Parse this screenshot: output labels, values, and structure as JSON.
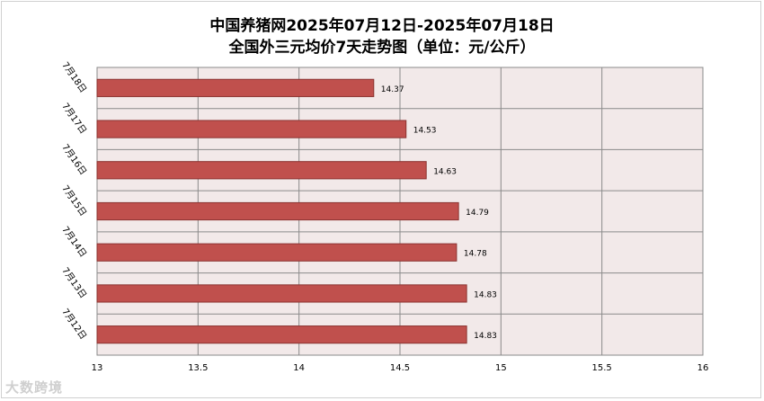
{
  "chart_data": {
    "type": "bar",
    "orientation": "horizontal",
    "title": "中国养猪网2025年07月12日-2025年07月18日",
    "subtitle": "全国外三元均价7天走势图（单位：元/公斤）",
    "categories": [
      "7月18日",
      "7月17日",
      "7月16日",
      "7月15日",
      "7月14日",
      "7月13日",
      "7月12日"
    ],
    "values": [
      14.37,
      14.53,
      14.63,
      14.79,
      14.78,
      14.83,
      14.83
    ],
    "data_labels": [
      "14.37",
      "14.53",
      "14.63",
      "14.79",
      "14.78",
      "14.83",
      "14.83"
    ],
    "xlim": [
      13,
      16
    ],
    "x_ticks": [
      "13",
      "13.5",
      "14",
      "14.5",
      "15",
      "15.5",
      "16"
    ],
    "xlabel": "",
    "ylabel": "",
    "grid": true,
    "colors": {
      "bar": "#c0504d",
      "bar_border": "#8b3431",
      "plot_bg": "#f2e9e9",
      "grid": "#8a8a8a"
    }
  },
  "watermark": "大数跨境"
}
